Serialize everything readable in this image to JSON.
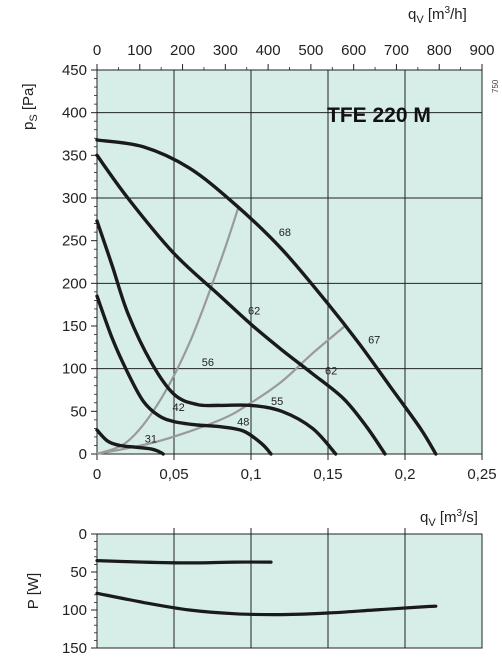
{
  "chart_data": [
    {
      "type": "line",
      "title": "TFE  220 M",
      "xlabel": "qV [m3/s]",
      "x2label": "qV [m3/h]",
      "ylabel": "pS [Pa]",
      "side_label": "750",
      "xlim": [
        0,
        0.25
      ],
      "ylim": [
        0,
        450
      ],
      "x2lim": [
        0,
        900
      ],
      "x_ticks": [
        "0",
        "0,05",
        "0,1",
        "0,15",
        "0,2",
        "0,25"
      ],
      "x2_ticks": [
        "0",
        "100",
        "200",
        "300",
        "400",
        "500",
        "600",
        "700",
        "800",
        "900"
      ],
      "y_ticks": [
        "0",
        "50",
        "100",
        "150",
        "200",
        "250",
        "300",
        "350",
        "400",
        "450"
      ],
      "fan_curves": [
        {
          "x": [
            0,
            0.03,
            0.06,
            0.09,
            0.12,
            0.15,
            0.17,
            0.19,
            0.21,
            0.22
          ],
          "y": [
            368,
            360,
            335,
            292,
            240,
            176,
            130,
            80,
            30,
            0
          ]
        },
        {
          "x": [
            0,
            0.02,
            0.05,
            0.08,
            0.1,
            0.12,
            0.14,
            0.16,
            0.175,
            0.187
          ],
          "y": [
            350,
            300,
            235,
            185,
            152,
            122,
            94,
            65,
            32,
            0
          ]
        },
        {
          "x": [
            0,
            0.01,
            0.02,
            0.035,
            0.05,
            0.065,
            0.08,
            0.1,
            0.12,
            0.14,
            0.155
          ],
          "y": [
            273,
            220,
            165,
            108,
            70,
            58,
            57,
            57,
            50,
            30,
            0
          ]
        },
        {
          "x": [
            0,
            0.01,
            0.02,
            0.03,
            0.04,
            0.05,
            0.065,
            0.08,
            0.095,
            0.107,
            0.113
          ],
          "y": [
            185,
            135,
            95,
            62,
            45,
            38,
            34,
            32,
            27,
            12,
            0
          ]
        },
        {
          "x": [
            0,
            0.007,
            0.015,
            0.025,
            0.035,
            0.04,
            0.043
          ],
          "y": [
            28,
            15,
            10,
            8,
            6,
            3,
            0
          ]
        }
      ],
      "system_curves": [
        {
          "x": [
            0,
            0.02,
            0.04,
            0.06,
            0.08,
            0.092
          ],
          "y": [
            0,
            15,
            60,
            130,
            225,
            290
          ]
        },
        {
          "x": [
            0,
            0.04,
            0.08,
            0.1,
            0.12,
            0.14,
            0.161
          ],
          "y": [
            0,
            15,
            40,
            60,
            85,
            118,
            150
          ]
        }
      ],
      "curve_labels": [
        {
          "text": "68",
          "x": 0.122,
          "y": 260
        },
        {
          "text": "62",
          "x": 0.102,
          "y": 168
        },
        {
          "text": "67",
          "x": 0.18,
          "y": 134
        },
        {
          "text": "56",
          "x": 0.072,
          "y": 108
        },
        {
          "text": "62",
          "x": 0.152,
          "y": 98
        },
        {
          "text": "42",
          "x": 0.053,
          "y": 55
        },
        {
          "text": "55",
          "x": 0.117,
          "y": 62
        },
        {
          "text": "48",
          "x": 0.095,
          "y": 38
        },
        {
          "text": "31",
          "x": 0.035,
          "y": 18
        }
      ]
    },
    {
      "type": "line",
      "ylabel": "P [W]",
      "xlim": [
        0,
        0.25
      ],
      "ylim": [
        0,
        150
      ],
      "y_ticks": [
        "0",
        "50",
        "100",
        "150"
      ],
      "series": [
        {
          "x": [
            0,
            0.03,
            0.06,
            0.09,
            0.113
          ],
          "y": [
            35,
            37,
            38,
            37,
            37
          ]
        },
        {
          "x": [
            0,
            0.03,
            0.06,
            0.09,
            0.12,
            0.15,
            0.18,
            0.21,
            0.22
          ],
          "y": [
            78,
            90,
            100,
            105,
            106,
            104,
            100,
            96,
            95
          ]
        }
      ]
    }
  ]
}
